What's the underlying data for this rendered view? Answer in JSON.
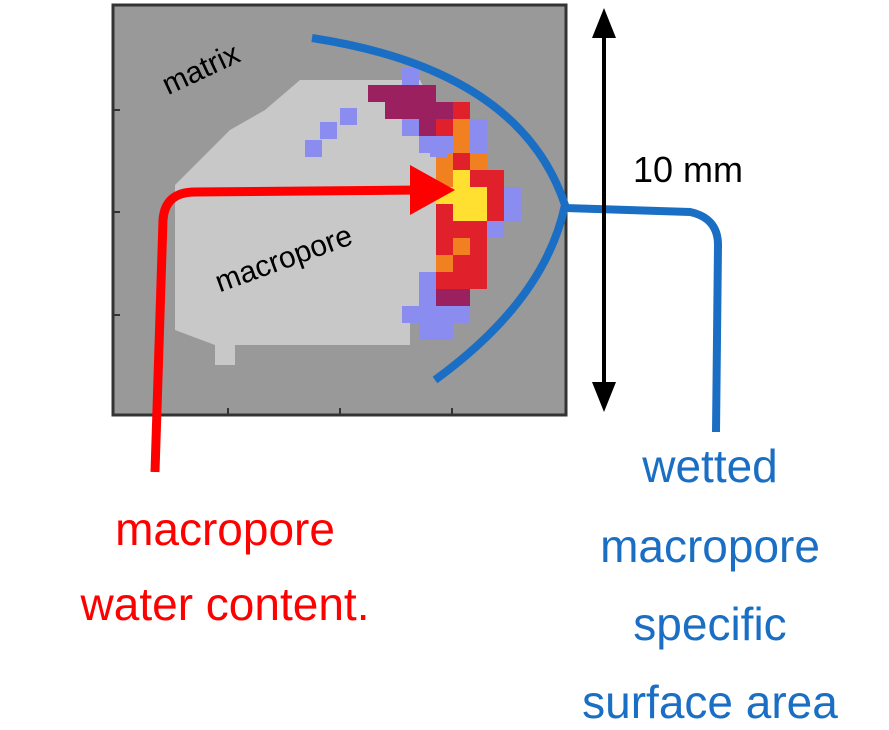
{
  "image_labels": {
    "matrix": "matrix",
    "macropore": "macropore"
  },
  "scale_label": "10  mm",
  "water_label": [
    "macropore",
    "water content."
  ],
  "surface_label": [
    "wetted",
    "macropore",
    "specific",
    "surface area"
  ]
}
